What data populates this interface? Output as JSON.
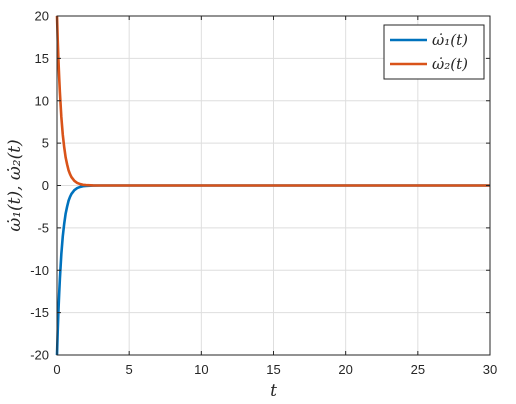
{
  "chart_data": {
    "type": "line",
    "title": "",
    "xlabel": "t",
    "ylabel": "ω̇₁(t), ω̇₂(t)",
    "xlim": [
      0,
      30
    ],
    "ylim": [
      -20,
      20
    ],
    "xticks": [
      0,
      5,
      10,
      15,
      20,
      25,
      30
    ],
    "yticks": [
      -20,
      -15,
      -10,
      -5,
      0,
      5,
      10,
      15,
      20
    ],
    "xtick_labels": [
      "0",
      "5",
      "10",
      "15",
      "20",
      "25",
      "30"
    ],
    "ytick_labels": [
      "-20",
      "-15",
      "-10",
      "-5",
      "0",
      "5",
      "10",
      "15",
      "20"
    ],
    "grid": true,
    "legend_position": "top-right",
    "series": [
      {
        "name": "ω̇₁(t)",
        "color": "#0072BD",
        "x": [
          0,
          0.05,
          0.1,
          0.15,
          0.2,
          0.3,
          0.4,
          0.5,
          0.6,
          0.7,
          0.8,
          0.9,
          1.0,
          1.2,
          1.4,
          1.6,
          1.8,
          2.0,
          2.5,
          3.0,
          4.0,
          5.0,
          10,
          15,
          20,
          25,
          30
        ],
        "y": [
          -20,
          -17.2,
          -14.8,
          -12.8,
          -11.0,
          -8.1,
          -6.0,
          -4.5,
          -3.3,
          -2.5,
          -1.8,
          -1.35,
          -1.0,
          -0.55,
          -0.3,
          -0.17,
          -0.09,
          -0.05,
          -0.01,
          0,
          0,
          0,
          0,
          0,
          0,
          0,
          0
        ]
      },
      {
        "name": "ω̇₂(t)",
        "color": "#D95319",
        "x": [
          0,
          0.05,
          0.1,
          0.15,
          0.2,
          0.3,
          0.4,
          0.5,
          0.6,
          0.7,
          0.8,
          0.9,
          1.0,
          1.2,
          1.4,
          1.6,
          1.8,
          2.0,
          2.5,
          3.0,
          4.0,
          5.0,
          10,
          15,
          20,
          25,
          30
        ],
        "y": [
          20,
          17.2,
          14.8,
          12.8,
          11.0,
          8.1,
          6.0,
          4.5,
          3.3,
          2.5,
          1.8,
          1.35,
          1.0,
          0.55,
          0.3,
          0.17,
          0.09,
          0.05,
          0.01,
          0,
          0,
          0,
          0,
          0,
          0,
          0,
          0
        ]
      }
    ]
  }
}
